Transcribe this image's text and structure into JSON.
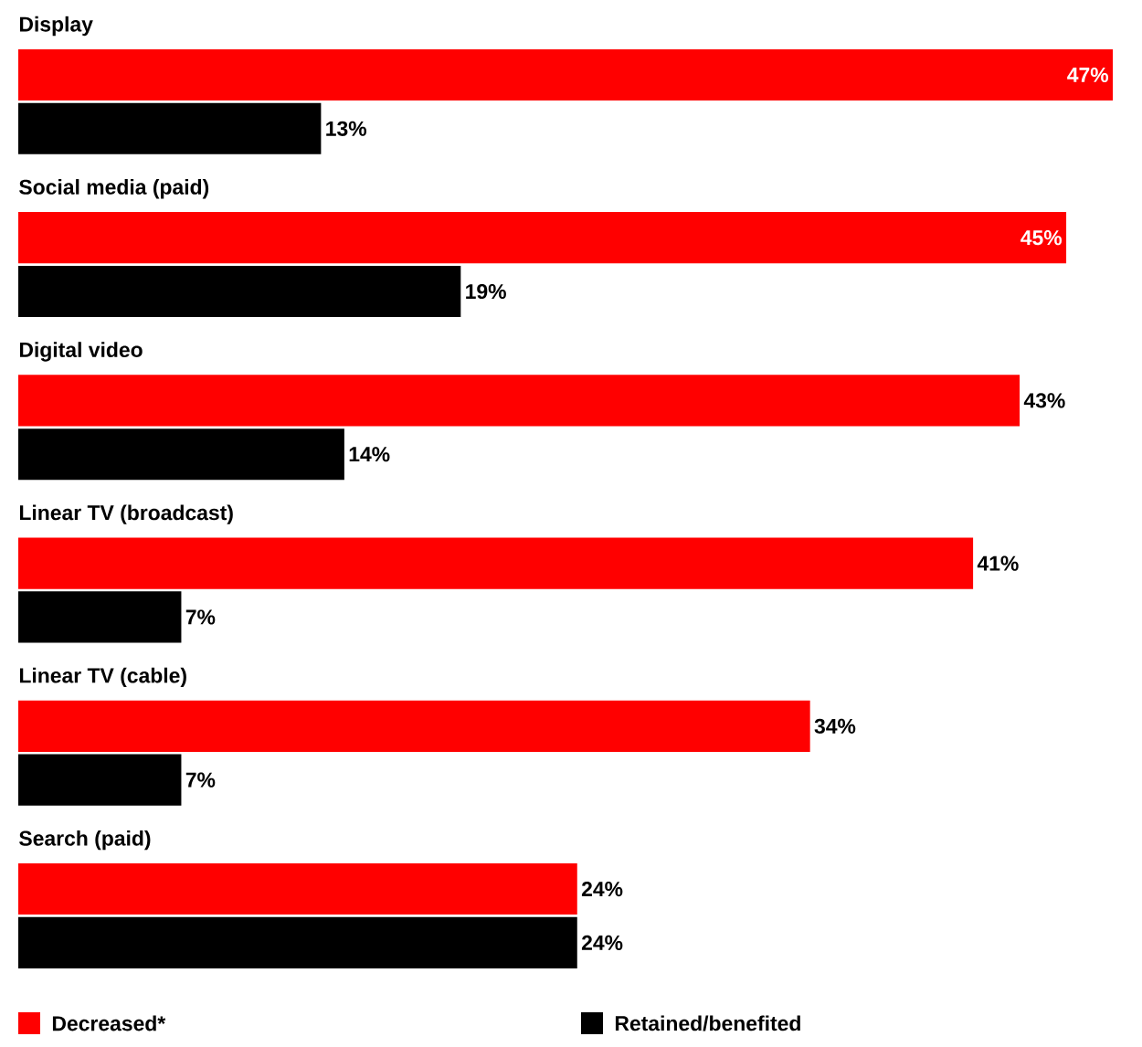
{
  "chart_data": {
    "type": "bar",
    "orientation": "horizontal",
    "categories": [
      "Display",
      "Social media (paid)",
      "Digital video",
      "Linear TV (broadcast)",
      "Linear TV (cable)",
      "Search (paid)"
    ],
    "series": [
      {
        "name": "Decreased*",
        "color": "#ff0000",
        "values": [
          47,
          45,
          43,
          41,
          34,
          24
        ],
        "value_labels": [
          "47%",
          "45%",
          "43%",
          "41%",
          "34%",
          "24%"
        ]
      },
      {
        "name": "Retained/benefited",
        "color": "#000000",
        "values": [
          13,
          19,
          14,
          7,
          7,
          24
        ],
        "value_labels": [
          "13%",
          "19%",
          "14%",
          "7%",
          "7%",
          "24%"
        ]
      }
    ],
    "legend": "bottom"
  }
}
